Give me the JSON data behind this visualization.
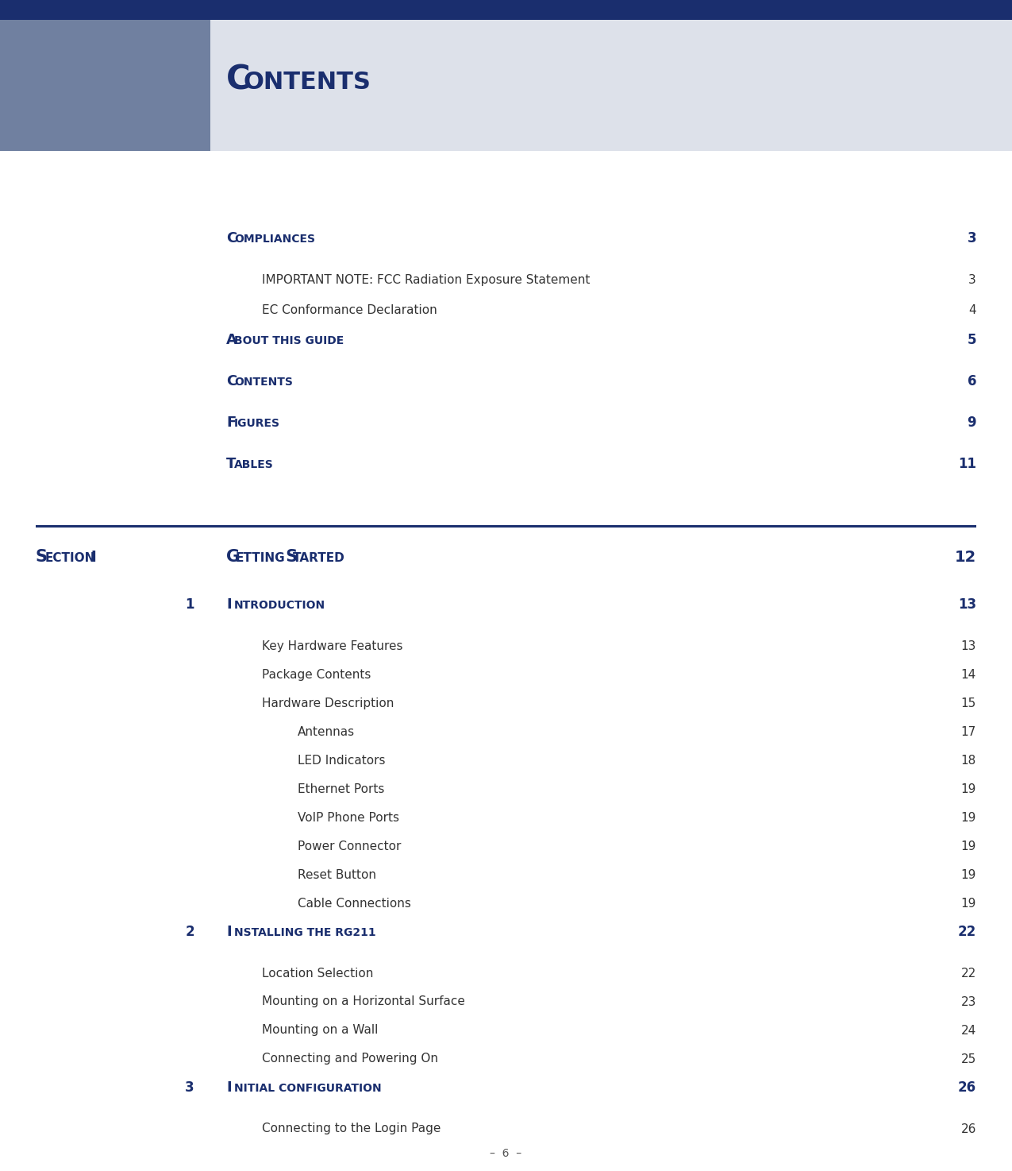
{
  "page_bg": "#ffffff",
  "header_bg_left": "#7080a0",
  "header_bg_right": "#dde1ea",
  "header_stripe_color": "#1a2e6e",
  "dark_blue": "#1a2e6e",
  "body_text_color": "#333333",
  "title_text": "CONTENTS",
  "toc_entries": [
    {
      "level": 0,
      "label": "Compliances",
      "page": "3"
    },
    {
      "level": 1,
      "label": "IMPORTANT NOTE: FCC Radiation Exposure Statement",
      "page": "3"
    },
    {
      "level": 1,
      "label": "EC Conformance Declaration",
      "page": "4"
    },
    {
      "level": 0,
      "label": "About This Guide",
      "page": "5"
    },
    {
      "level": 0,
      "label": "Contents",
      "page": "6"
    },
    {
      "level": 0,
      "label": "Figures",
      "page": "9"
    },
    {
      "level": 0,
      "label": "Tables",
      "page": "11"
    }
  ],
  "num_entries": [
    {
      "type": "chapter",
      "num": "1",
      "label": "Introduction",
      "page": "13"
    },
    {
      "type": "sub2",
      "num": "",
      "label": "Key Hardware Features",
      "page": "13"
    },
    {
      "type": "sub2",
      "num": "",
      "label": "Package Contents",
      "page": "14"
    },
    {
      "type": "sub2",
      "num": "",
      "label": "Hardware Description",
      "page": "15"
    },
    {
      "type": "sub3",
      "num": "",
      "label": "Antennas",
      "page": "17"
    },
    {
      "type": "sub3",
      "num": "",
      "label": "LED Indicators",
      "page": "18"
    },
    {
      "type": "sub3",
      "num": "",
      "label": "Ethernet Ports",
      "page": "19"
    },
    {
      "type": "sub3",
      "num": "",
      "label": "VoIP Phone Ports",
      "page": "19"
    },
    {
      "type": "sub3",
      "num": "",
      "label": "Power Connector",
      "page": "19"
    },
    {
      "type": "sub3",
      "num": "",
      "label": "Reset Button",
      "page": "19"
    },
    {
      "type": "sub3",
      "num": "",
      "label": "Cable Connections",
      "page": "19"
    },
    {
      "type": "chapter",
      "num": "2",
      "label": "Installing the RG211",
      "page": "22"
    },
    {
      "type": "sub2",
      "num": "",
      "label": "Location Selection",
      "page": "22"
    },
    {
      "type": "sub2",
      "num": "",
      "label": "Mounting on a Horizontal Surface",
      "page": "23"
    },
    {
      "type": "sub2",
      "num": "",
      "label": "Mounting on a Wall",
      "page": "24"
    },
    {
      "type": "sub2",
      "num": "",
      "label": "Connecting and Powering On",
      "page": "25"
    },
    {
      "type": "chapter",
      "num": "3",
      "label": "Initial Configuration",
      "page": "26"
    },
    {
      "type": "sub2",
      "num": "",
      "label": "Connecting to the Login Page",
      "page": "26"
    }
  ],
  "footer_text": "–  6  –"
}
